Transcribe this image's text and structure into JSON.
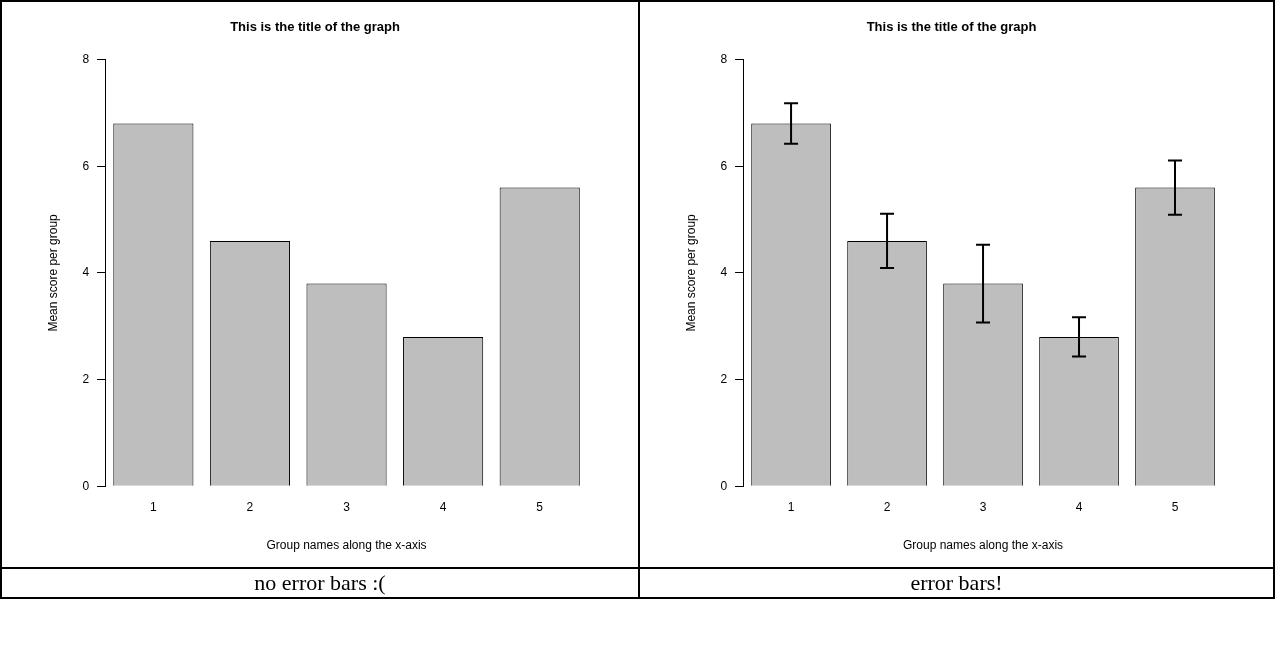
{
  "chart_data": [
    {
      "type": "bar",
      "title": "This is the title of the graph",
      "xlabel": "Group names along the x-axis",
      "ylabel": "Mean score per group",
      "categories": [
        "1",
        "2",
        "3",
        "4",
        "5"
      ],
      "values": [
        6.8,
        4.6,
        3.8,
        2.8,
        5.6
      ],
      "color": "#bebebe",
      "ylim": [
        0,
        8
      ],
      "yticks": [
        0,
        2,
        4,
        6,
        8
      ],
      "grid": false,
      "legend": false,
      "annotations": [
        "no error bars :("
      ]
    },
    {
      "type": "bar",
      "title": "This is the title of the graph",
      "xlabel": "Group names along the x-axis",
      "ylabel": "Mean score per group",
      "categories": [
        "1",
        "2",
        "3",
        "4",
        "5"
      ],
      "values": [
        6.8,
        4.6,
        3.8,
        2.8,
        5.6
      ],
      "errors": [
        0.38,
        0.51,
        0.73,
        0.37,
        0.51
      ],
      "color": "#bebebe",
      "ylim": [
        0,
        8
      ],
      "yticks": [
        0,
        2,
        4,
        6,
        8
      ],
      "grid": false,
      "legend": false,
      "annotations": [
        "error bars!"
      ]
    }
  ]
}
